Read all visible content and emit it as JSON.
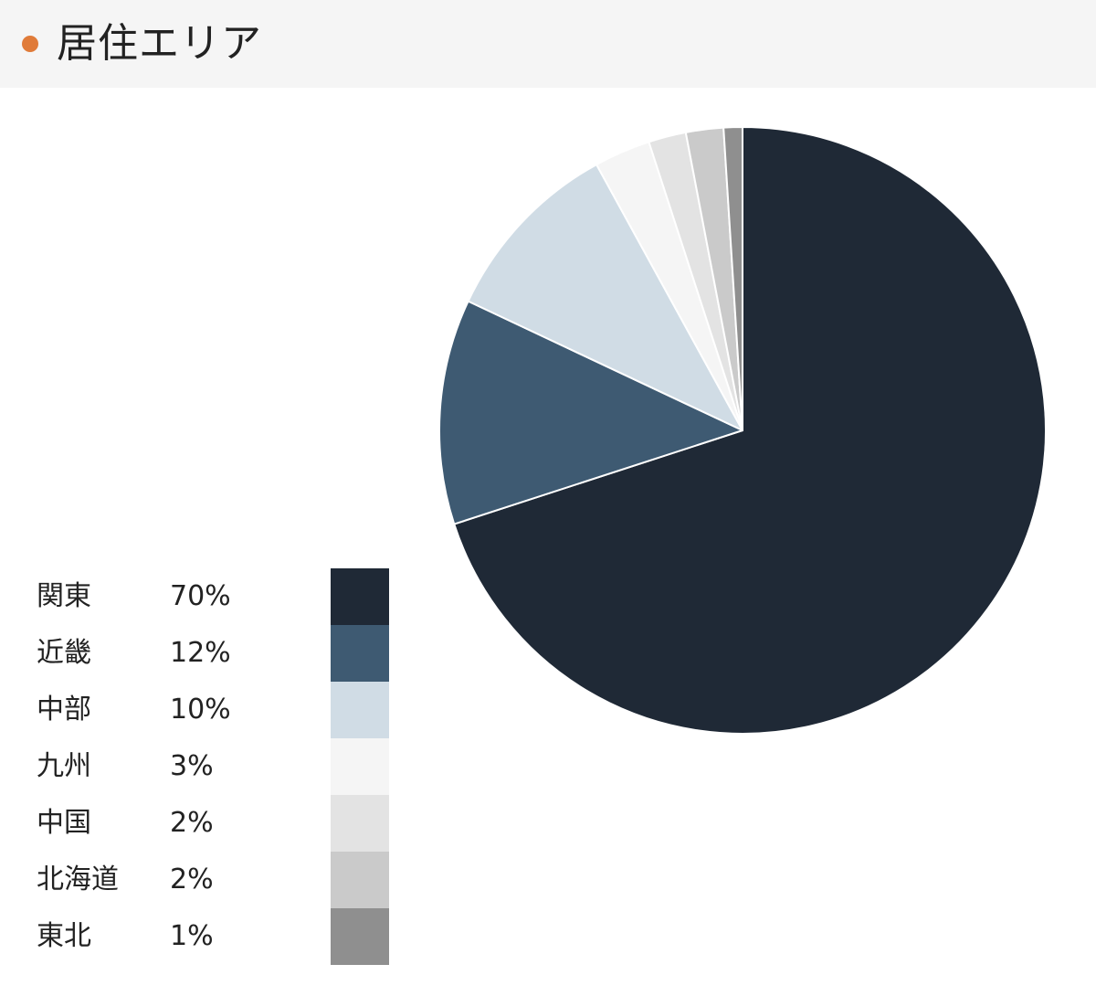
{
  "header": {
    "title": "居住エリア"
  },
  "colors": {
    "accent_dot": "#e07b39",
    "header_bg": "#f5f5f5"
  },
  "chart_data": {
    "type": "pie",
    "title": "居住エリア",
    "start": "top",
    "direction": "clockwise",
    "legend_position": "bottom-left",
    "categories": [
      "関東",
      "近畿",
      "中部",
      "九州",
      "中国",
      "北海道",
      "東北"
    ],
    "values": [
      70,
      12,
      10,
      3,
      2,
      2,
      1
    ],
    "value_labels": [
      "70%",
      "12%",
      "10%",
      "3%",
      "2%",
      "2%",
      "1%"
    ],
    "colors": [
      "#1f2936",
      "#3e5a72",
      "#d0dce5",
      "#f5f5f5",
      "#e3e3e3",
      "#cacaca",
      "#8f8f8f"
    ]
  }
}
